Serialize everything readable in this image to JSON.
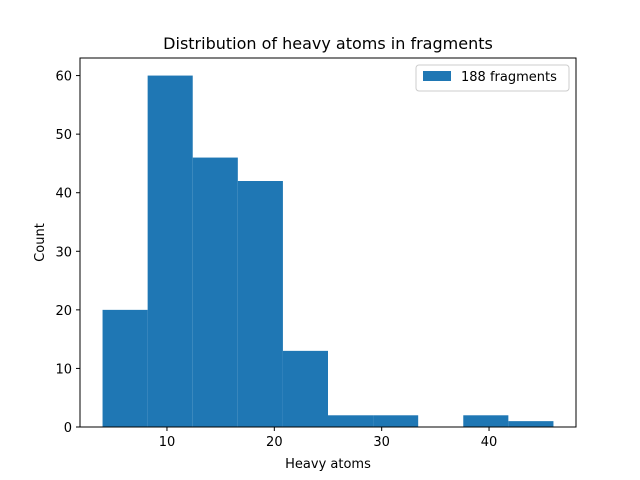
{
  "chart_data": {
    "type": "bar",
    "title": "Distribution of heavy atoms in fragments",
    "xlabel": "Heavy atoms",
    "ylabel": "Count",
    "xlim": [
      1.9,
      48.1
    ],
    "ylim": [
      0,
      63
    ],
    "x_ticks": [
      10,
      20,
      30,
      40
    ],
    "y_ticks": [
      0,
      10,
      20,
      30,
      40,
      50,
      60
    ],
    "bin_edges": [
      4,
      8.2,
      12.4,
      16.6,
      20.8,
      25,
      29.2,
      33.4,
      37.6,
      41.8,
      46
    ],
    "series": [
      {
        "name": "188 fragments",
        "color": "#1f77b4",
        "values": [
          20,
          60,
          46,
          42,
          13,
          2,
          2,
          0,
          2,
          1
        ]
      }
    ],
    "grid": false,
    "legend_position": "upper right"
  }
}
